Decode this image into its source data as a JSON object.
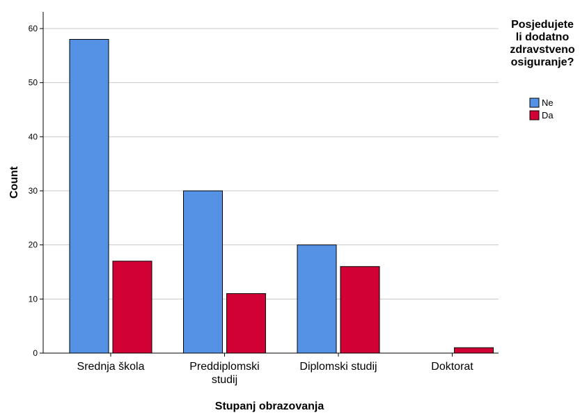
{
  "chart_data": {
    "type": "bar",
    "categories": [
      "Srednja škola",
      "Preddiplomski studij",
      "Diplomski studij",
      "Doktorat"
    ],
    "category_label_lines": [
      [
        "Srednja škola"
      ],
      [
        "Preddiplomski",
        "studij"
      ],
      [
        "Diplomski studij"
      ],
      [
        "Doktorat"
      ]
    ],
    "series": [
      {
        "name": "Ne",
        "values": [
          58,
          30,
          20,
          0
        ],
        "color": "#5592e5"
      },
      {
        "name": "Da",
        "values": [
          17,
          11,
          16,
          1
        ],
        "color": "#d10035"
      }
    ],
    "xlabel": "Stupanj obrazovanja",
    "ylabel": "Count",
    "ylim": [
      0,
      60
    ],
    "yticks": [
      0,
      10,
      20,
      30,
      40,
      50,
      60
    ],
    "grid": true,
    "legend": {
      "title_lines": [
        "Posjedujete",
        "li dodatno",
        "zdravstveno",
        "osiguranje?"
      ],
      "placement": "top-right"
    }
  }
}
